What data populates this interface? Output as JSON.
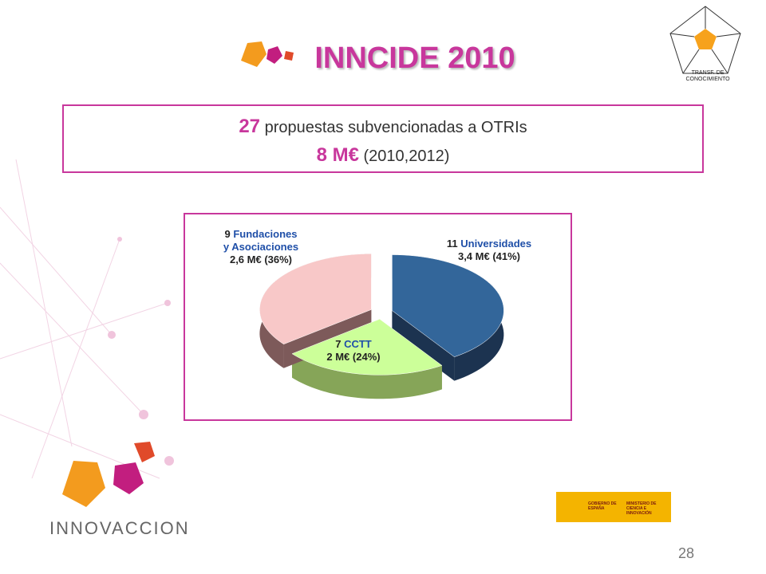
{
  "header": {
    "title": "INNCIDE 2010",
    "badge": "TRANSF. DE CONOCIMIENTO"
  },
  "summary": {
    "proposals": 27,
    "proposals_text": "propuestas subvencionadas a OTRIs",
    "amount": "8 M€",
    "period": "(2010,2012)"
  },
  "chart_data": {
    "type": "pie",
    "categories": [
      "Universidades",
      "CCTT",
      "Fundaciones y Asociaciones"
    ],
    "counts": [
      11,
      7,
      9
    ],
    "values": [
      41,
      24,
      36
    ],
    "value_labels": [
      "3,4 M€ (41%)",
      "2 M€ (24%)",
      "2,6 M€ (36%)"
    ],
    "colors": [
      "#33669a",
      "#ccff99",
      "#f8c8c8"
    ],
    "side_colors": [
      "#1c3350",
      "#86a558",
      "#7d5a5a"
    ],
    "category_color": "#1f4fa8"
  },
  "footer": {
    "brand": "INNOVACCION",
    "government": "GOBIERNO DE ESPAÑA",
    "ministry": "MINISTERIO DE CIENCIA E INNOVACIÓN",
    "page": 28
  }
}
